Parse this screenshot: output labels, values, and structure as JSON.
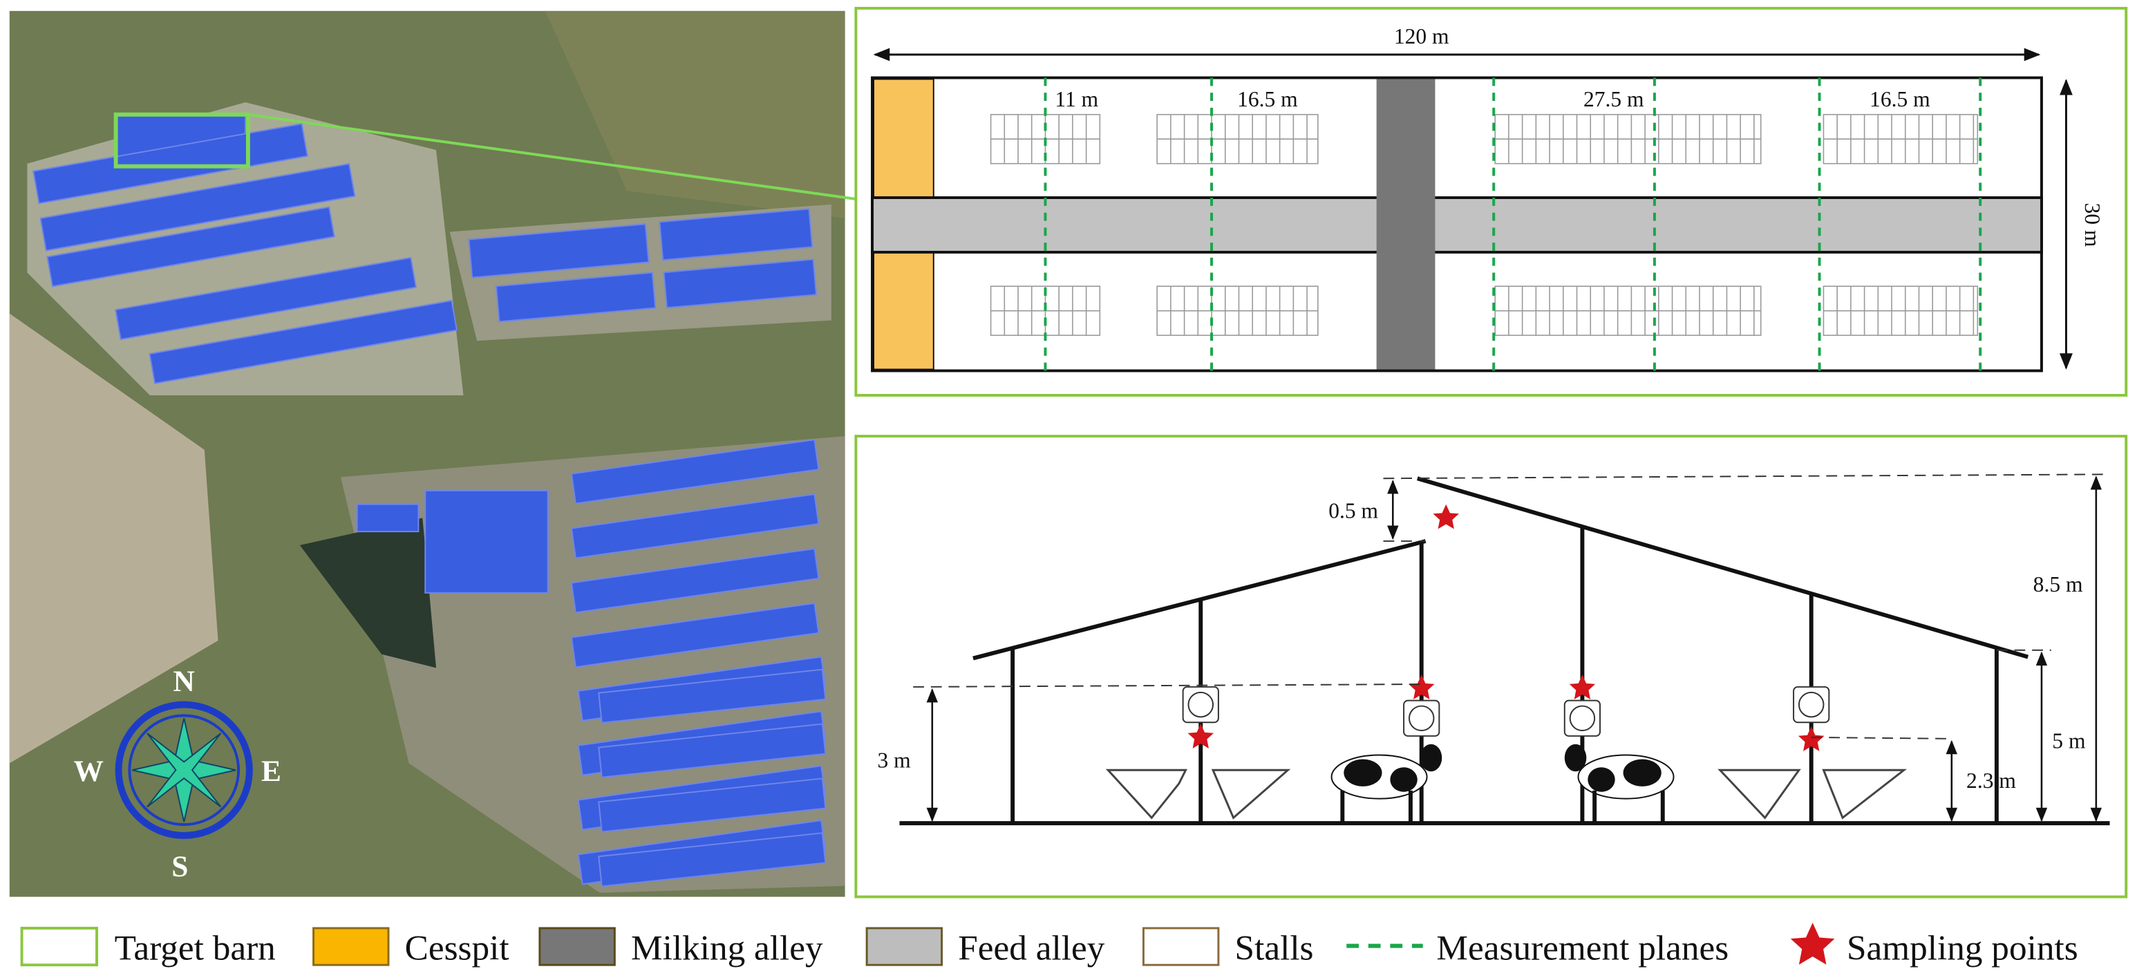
{
  "map": {
    "compass": {
      "north": "N",
      "east": "E",
      "south": "S",
      "west": "W"
    }
  },
  "plan": {
    "length": "120 m",
    "width": "30 m",
    "spacings": [
      "11 m",
      "16.5 m",
      "27.5 m",
      "16.5 m"
    ]
  },
  "section": {
    "peak_offset": "0.5 m",
    "ridge_height": "8.5 m",
    "left_eave_height": "3 m",
    "right_eave_height": "5 m",
    "sampling_height": "2.3 m"
  },
  "legend": [
    "Target barn",
    "Cesspit",
    "Milking alley",
    "Feed alley",
    "Stalls",
    "Measurement planes",
    "Sampling points"
  ]
}
